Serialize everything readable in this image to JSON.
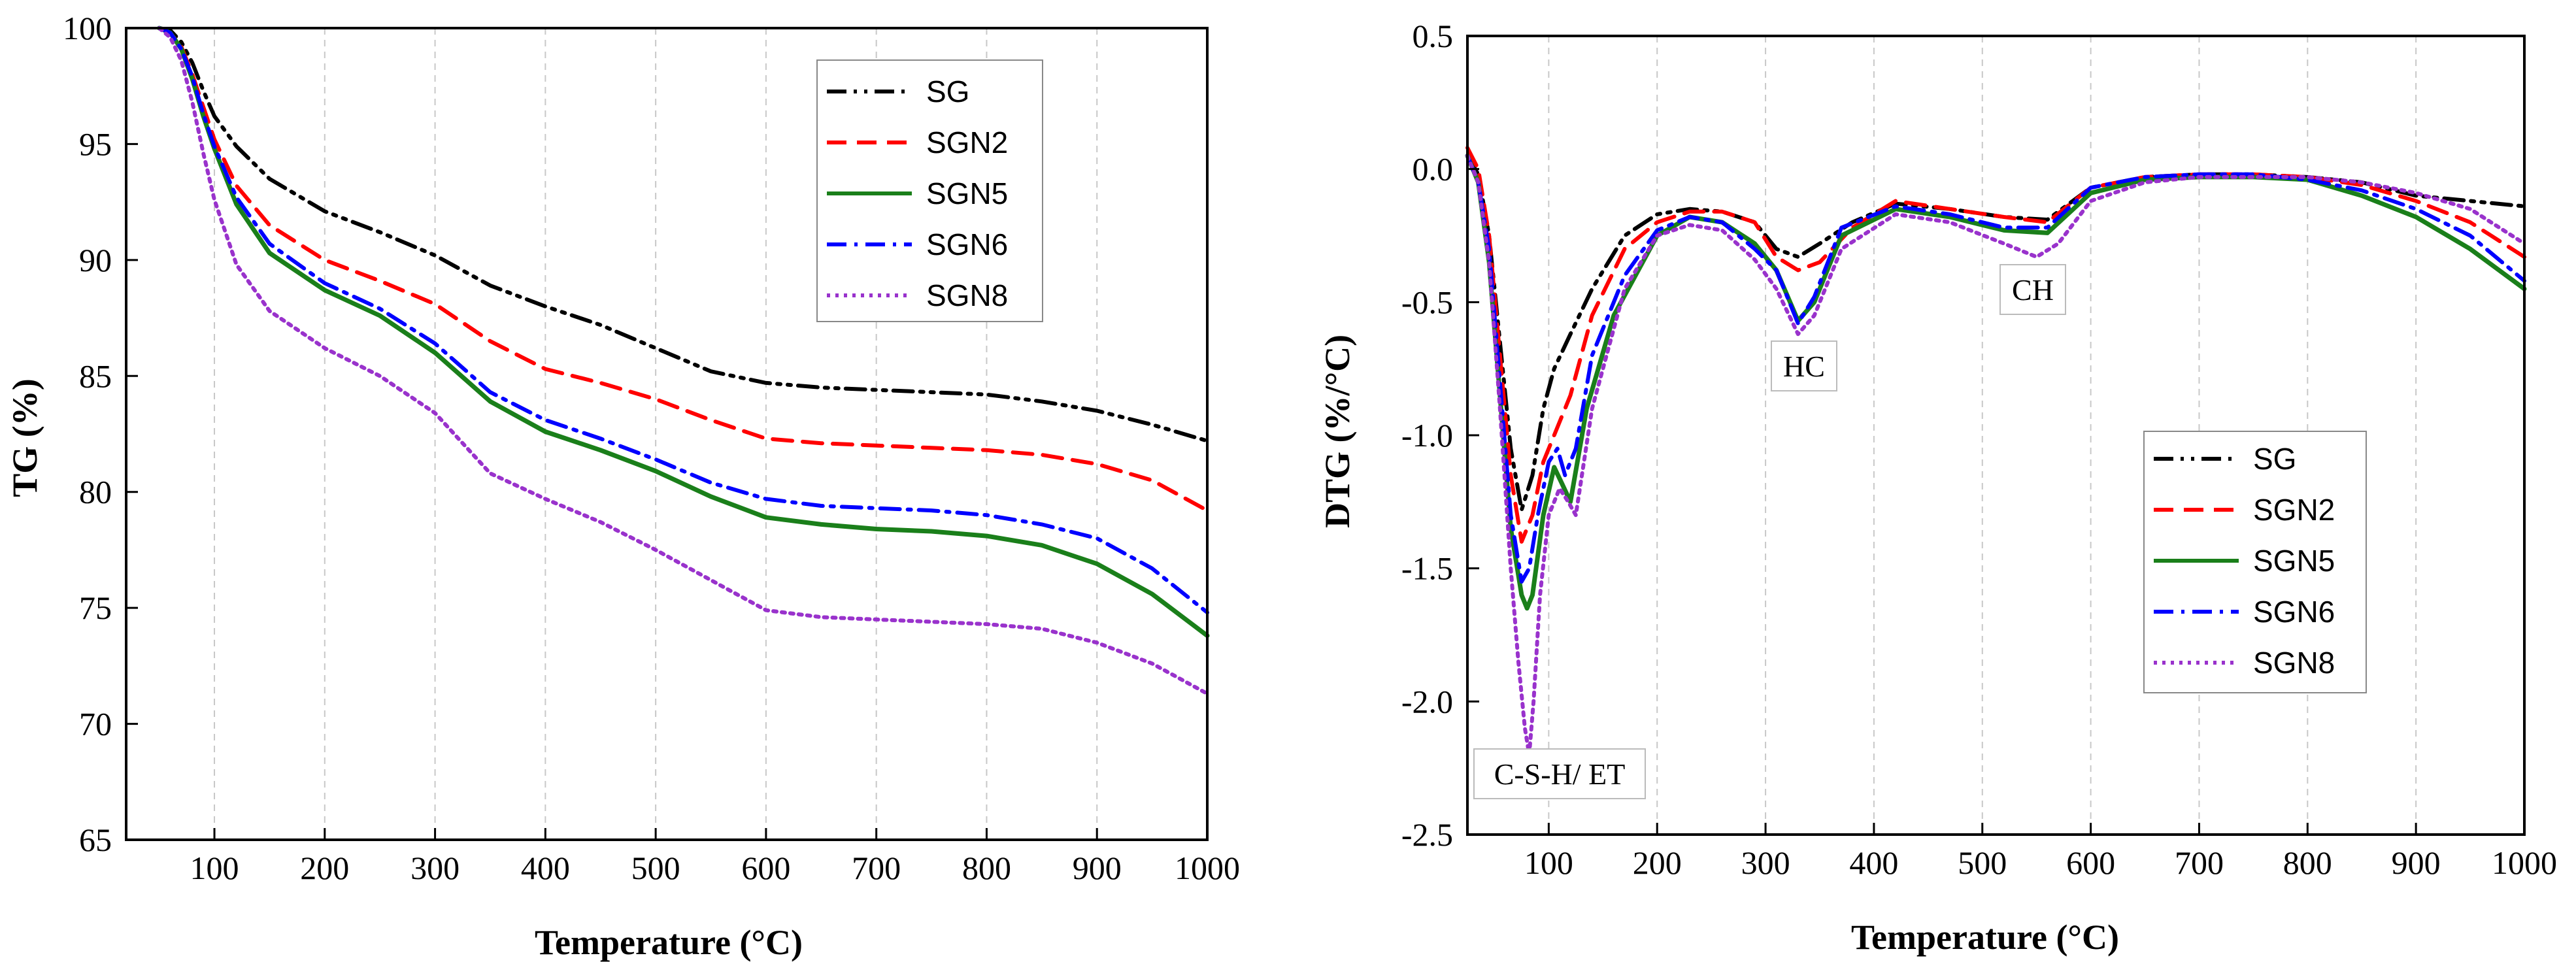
{
  "chart_data": [
    {
      "type": "line",
      "id": "tg",
      "title": "",
      "xlabel": "Temperature (°C)",
      "ylabel": "TG (%)",
      "xlim": [
        20,
        1000
      ],
      "ylim": [
        65,
        100
      ],
      "xticks": [
        100,
        200,
        300,
        400,
        500,
        600,
        700,
        800,
        900,
        1000
      ],
      "yticks": [
        65,
        70,
        75,
        80,
        85,
        90,
        95,
        100
      ],
      "xtick_labels": [
        "100",
        "200",
        "300",
        "400",
        "500",
        "600",
        "700",
        "800",
        "900",
        "1000"
      ],
      "ytick_labels": [
        "65",
        "70",
        "75",
        "80",
        "85",
        "90",
        "95",
        "100"
      ],
      "grid": "vertical dashed",
      "legend_position": "top-right",
      "series": [
        {
          "name": "SG",
          "color": "#000000",
          "dash": "dash-dot-dot",
          "x": [
            50,
            60,
            70,
            80,
            90,
            100,
            120,
            150,
            200,
            250,
            300,
            350,
            400,
            450,
            500,
            550,
            600,
            650,
            700,
            750,
            800,
            850,
            900,
            950,
            1000
          ],
          "y": [
            100,
            99.9,
            99.4,
            98.5,
            97.3,
            96.2,
            94.9,
            93.5,
            92.1,
            91.2,
            90.2,
            88.9,
            88.0,
            87.2,
            86.2,
            85.2,
            84.7,
            84.5,
            84.4,
            84.3,
            84.2,
            83.9,
            83.5,
            82.9,
            82.2
          ]
        },
        {
          "name": "SGN2",
          "color": "#ff0000",
          "dash": "dash",
          "x": [
            50,
            60,
            70,
            80,
            90,
            100,
            120,
            150,
            200,
            250,
            300,
            350,
            400,
            450,
            500,
            550,
            600,
            650,
            700,
            750,
            800,
            850,
            900,
            950,
            1000
          ],
          "y": [
            100,
            99.8,
            99.2,
            98.0,
            96.6,
            95.2,
            93.2,
            91.5,
            90.0,
            89.1,
            88.1,
            86.5,
            85.3,
            84.7,
            84.0,
            83.1,
            82.3,
            82.1,
            82.0,
            81.9,
            81.8,
            81.6,
            81.2,
            80.5,
            79.2
          ]
        },
        {
          "name": "SGN5",
          "color": "#1a7f1a",
          "dash": "solid",
          "x": [
            50,
            60,
            70,
            80,
            90,
            100,
            120,
            150,
            200,
            250,
            300,
            350,
            400,
            450,
            500,
            550,
            600,
            650,
            700,
            750,
            800,
            850,
            900,
            950,
            1000
          ],
          "y": [
            100,
            99.8,
            99.1,
            97.8,
            96.2,
            94.8,
            92.4,
            90.3,
            88.7,
            87.6,
            86.0,
            83.9,
            82.6,
            81.8,
            80.9,
            79.8,
            78.9,
            78.6,
            78.4,
            78.3,
            78.1,
            77.7,
            76.9,
            75.6,
            73.8
          ]
        },
        {
          "name": "SGN6",
          "color": "#0000ff",
          "dash": "dash-dot",
          "x": [
            50,
            60,
            70,
            80,
            90,
            100,
            120,
            150,
            200,
            250,
            300,
            350,
            400,
            450,
            500,
            550,
            600,
            650,
            700,
            750,
            800,
            850,
            900,
            950,
            1000
          ],
          "y": [
            100,
            99.8,
            99.1,
            97.9,
            96.3,
            94.9,
            92.7,
            90.7,
            89.0,
            87.9,
            86.4,
            84.3,
            83.1,
            82.3,
            81.4,
            80.4,
            79.7,
            79.4,
            79.3,
            79.2,
            79.0,
            78.6,
            78.0,
            76.7,
            74.8
          ]
        },
        {
          "name": "SGN8",
          "color": "#9932cc",
          "dash": "dot",
          "x": [
            50,
            60,
            70,
            80,
            90,
            100,
            120,
            150,
            200,
            250,
            300,
            350,
            400,
            450,
            500,
            550,
            600,
            650,
            700,
            750,
            800,
            850,
            900,
            950,
            1000
          ],
          "y": [
            100,
            99.6,
            98.6,
            96.8,
            94.6,
            92.6,
            89.8,
            87.8,
            86.2,
            85.0,
            83.4,
            80.8,
            79.7,
            78.7,
            77.5,
            76.2,
            74.9,
            74.6,
            74.5,
            74.4,
            74.3,
            74.1,
            73.5,
            72.6,
            71.3
          ]
        }
      ]
    },
    {
      "type": "line",
      "id": "dtg",
      "title": "",
      "xlabel": "Temperature (°C)",
      "ylabel": "DTG (%/°C)",
      "xlim": [
        25,
        1000
      ],
      "ylim": [
        -2.5,
        0.5
      ],
      "xticks": [
        100,
        200,
        300,
        400,
        500,
        600,
        700,
        800,
        900,
        1000
      ],
      "yticks": [
        -2.5,
        -2.0,
        -1.5,
        -1.0,
        -0.5,
        0.0,
        0.5
      ],
      "xtick_labels": [
        "100",
        "200",
        "300",
        "400",
        "500",
        "600",
        "700",
        "800",
        "900",
        "1000"
      ],
      "ytick_labels": [
        "-2.5",
        "-2.0",
        "-1.5",
        "-1.0",
        "-0.5",
        "0.0",
        "0.5"
      ],
      "grid": "vertical dashed",
      "legend_position": "bottom-right",
      "annotations": [
        "C-S-H/ ET",
        "HC",
        "CH"
      ],
      "series": [
        {
          "name": "SG",
          "color": "#000000",
          "dash": "dash-dot-dot",
          "x": [
            25,
            35,
            45,
            55,
            65,
            75,
            85,
            95,
            105,
            120,
            140,
            170,
            200,
            230,
            260,
            290,
            310,
            330,
            350,
            380,
            420,
            470,
            520,
            560,
            600,
            650,
            700,
            750,
            800,
            850,
            900,
            950,
            1000
          ],
          "y": [
            0.05,
            -0.02,
            -0.25,
            -0.65,
            -1.05,
            -1.28,
            -1.15,
            -0.9,
            -0.75,
            -0.62,
            -0.45,
            -0.25,
            -0.17,
            -0.15,
            -0.16,
            -0.2,
            -0.3,
            -0.33,
            -0.28,
            -0.2,
            -0.13,
            -0.15,
            -0.18,
            -0.19,
            -0.07,
            -0.03,
            -0.02,
            -0.02,
            -0.03,
            -0.05,
            -0.1,
            -0.12,
            -0.14
          ]
        },
        {
          "name": "SGN2",
          "color": "#ff0000",
          "dash": "dash",
          "x": [
            25,
            35,
            45,
            55,
            65,
            75,
            85,
            95,
            105,
            120,
            140,
            170,
            200,
            230,
            260,
            290,
            310,
            330,
            350,
            380,
            420,
            470,
            520,
            560,
            600,
            650,
            700,
            750,
            800,
            850,
            900,
            950,
            1000
          ],
          "y": [
            0.08,
            0.0,
            -0.25,
            -0.7,
            -1.15,
            -1.4,
            -1.3,
            -1.1,
            -1.0,
            -0.85,
            -0.55,
            -0.3,
            -0.2,
            -0.16,
            -0.16,
            -0.2,
            -0.33,
            -0.38,
            -0.35,
            -0.22,
            -0.12,
            -0.15,
            -0.18,
            -0.2,
            -0.07,
            -0.03,
            -0.02,
            -0.02,
            -0.03,
            -0.06,
            -0.12,
            -0.2,
            -0.33
          ]
        },
        {
          "name": "SGN5",
          "color": "#1a7f1a",
          "dash": "solid",
          "x": [
            25,
            35,
            45,
            55,
            65,
            75,
            80,
            85,
            95,
            105,
            112,
            120,
            135,
            160,
            200,
            230,
            260,
            290,
            310,
            330,
            345,
            370,
            420,
            470,
            520,
            560,
            600,
            650,
            700,
            750,
            800,
            850,
            900,
            950,
            1000
          ],
          "y": [
            0.05,
            -0.05,
            -0.35,
            -0.85,
            -1.35,
            -1.6,
            -1.65,
            -1.6,
            -1.3,
            -1.12,
            -1.18,
            -1.25,
            -0.9,
            -0.55,
            -0.25,
            -0.18,
            -0.2,
            -0.28,
            -0.38,
            -0.57,
            -0.5,
            -0.25,
            -0.15,
            -0.18,
            -0.23,
            -0.24,
            -0.09,
            -0.04,
            -0.03,
            -0.03,
            -0.04,
            -0.1,
            -0.18,
            -0.3,
            -0.45
          ]
        },
        {
          "name": "SGN6",
          "color": "#0000ff",
          "dash": "dash-dot",
          "x": [
            25,
            35,
            45,
            55,
            65,
            75,
            82,
            90,
            100,
            108,
            115,
            125,
            140,
            170,
            200,
            230,
            260,
            290,
            310,
            330,
            345,
            370,
            420,
            470,
            520,
            560,
            600,
            650,
            700,
            750,
            800,
            850,
            900,
            950,
            1000
          ],
          "y": [
            0.05,
            -0.05,
            -0.3,
            -0.8,
            -1.3,
            -1.55,
            -1.5,
            -1.3,
            -1.1,
            -1.05,
            -1.15,
            -1.05,
            -0.7,
            -0.4,
            -0.23,
            -0.18,
            -0.2,
            -0.3,
            -0.38,
            -0.58,
            -0.48,
            -0.22,
            -0.14,
            -0.17,
            -0.22,
            -0.22,
            -0.07,
            -0.03,
            -0.02,
            -0.02,
            -0.04,
            -0.08,
            -0.15,
            -0.25,
            -0.42
          ]
        },
        {
          "name": "SGN8",
          "color": "#9932cc",
          "dash": "dot",
          "x": [
            25,
            35,
            45,
            55,
            65,
            72,
            78,
            82,
            86,
            92,
            100,
            110,
            118,
            125,
            140,
            170,
            200,
            230,
            260,
            290,
            310,
            330,
            345,
            370,
            420,
            470,
            520,
            550,
            570,
            600,
            650,
            700,
            750,
            800,
            850,
            900,
            950,
            1000
          ],
          "y": [
            0.05,
            -0.05,
            -0.35,
            -0.9,
            -1.5,
            -1.85,
            -2.1,
            -2.2,
            -2.0,
            -1.6,
            -1.3,
            -1.2,
            -1.25,
            -1.3,
            -0.9,
            -0.45,
            -0.25,
            -0.21,
            -0.23,
            -0.34,
            -0.45,
            -0.62,
            -0.55,
            -0.3,
            -0.17,
            -0.2,
            -0.28,
            -0.33,
            -0.28,
            -0.12,
            -0.05,
            -0.03,
            -0.03,
            -0.03,
            -0.05,
            -0.09,
            -0.15,
            -0.28
          ]
        }
      ]
    }
  ]
}
